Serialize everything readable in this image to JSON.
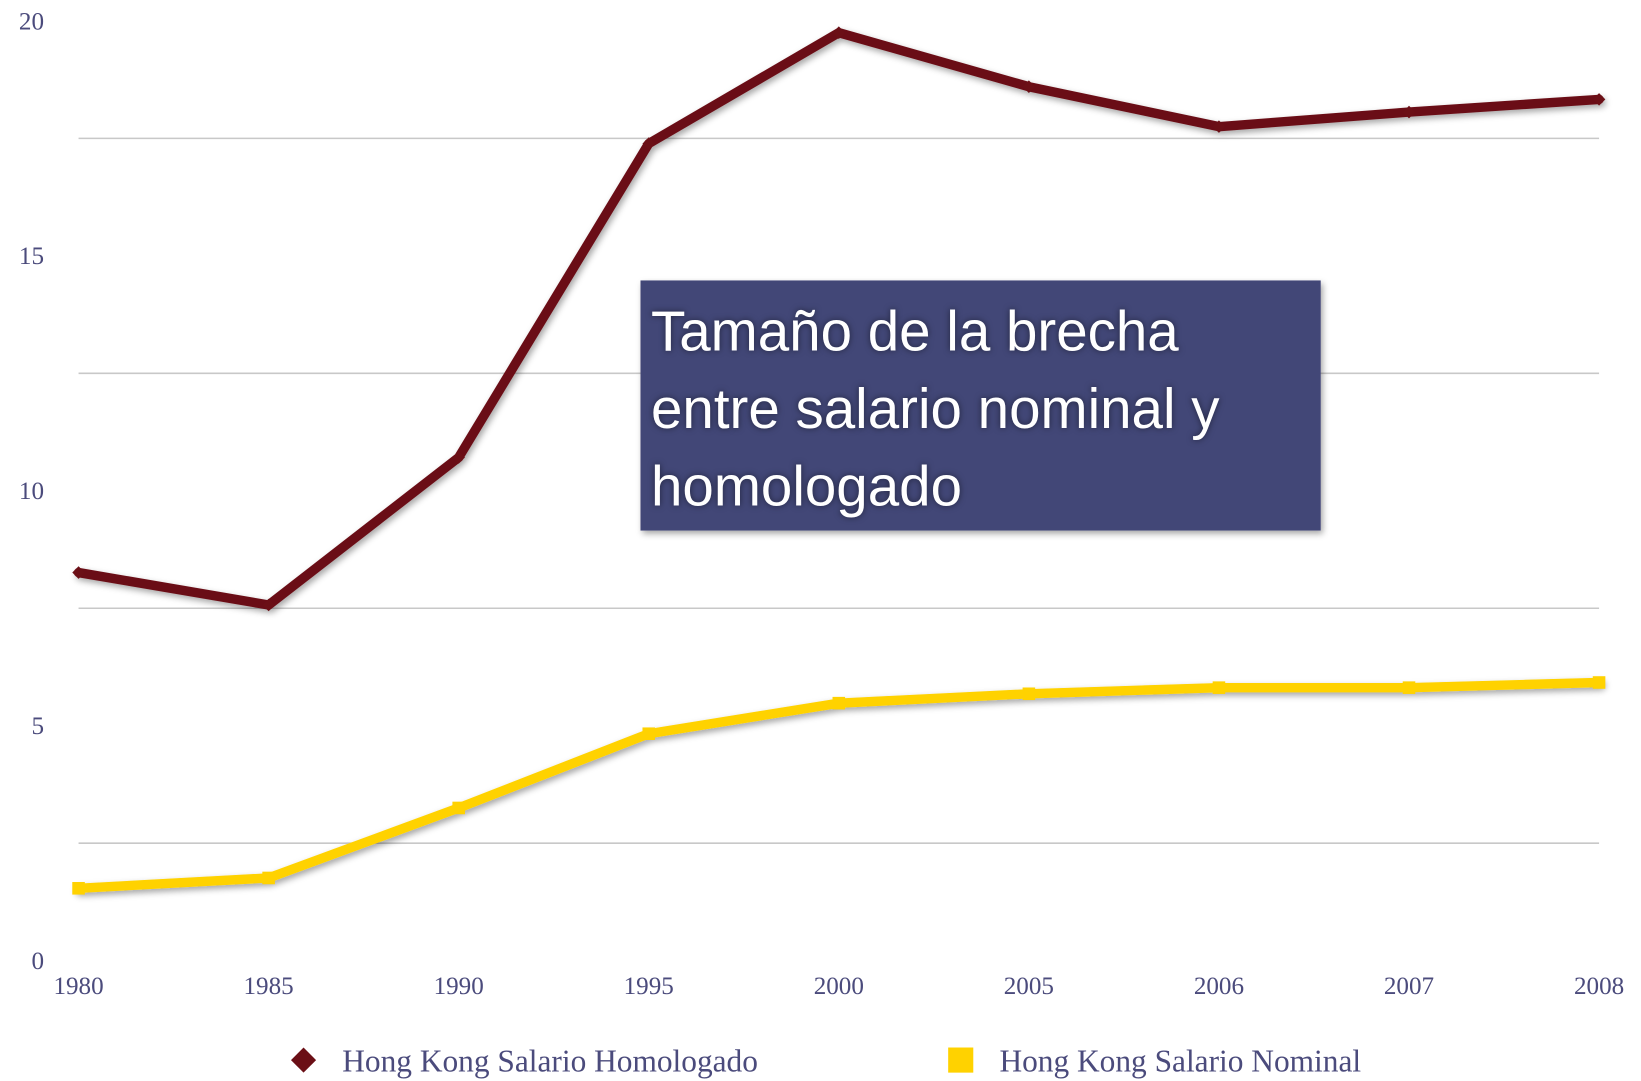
{
  "chart_data": {
    "type": "line",
    "annotation": "Tamaño de la brecha entre salario nominal y homologado",
    "categories": [
      "1980",
      "1985",
      "1990",
      "1995",
      "2000",
      "2005",
      "2006",
      "2007",
      "2008"
    ],
    "series": [
      {
        "name": "Hong Kong Salario Homologado",
        "color": "#6b0f16",
        "marker": "diamond",
        "values": [
          8.26,
          7.57,
          10.71,
          17.39,
          19.75,
          18.6,
          17.75,
          18.06,
          18.33
        ]
      },
      {
        "name": "Hong Kong Salario Nominal",
        "color": "#ffd200",
        "marker": "square",
        "values": [
          1.54,
          1.76,
          3.25,
          4.83,
          5.48,
          5.68,
          5.81,
          5.81,
          5.92
        ]
      }
    ],
    "ylim": [
      0,
      20
    ],
    "yticks": [
      0,
      5,
      10,
      15,
      20
    ],
    "grid_values": [
      2.5,
      7.5,
      12.5,
      17.5
    ],
    "legend": "bottom"
  }
}
